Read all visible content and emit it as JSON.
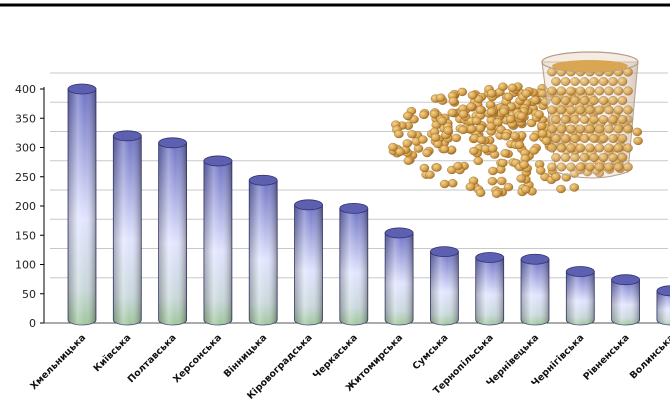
{
  "chart_data": {
    "type": "bar",
    "style": "3d-cylinder",
    "title": "",
    "xlabel": "",
    "ylabel": "",
    "ylim": [
      0,
      400
    ],
    "yticks": [
      0,
      50,
      100,
      150,
      200,
      250,
      300,
      350,
      400
    ],
    "grid": true,
    "legend": "none",
    "categories": [
      "Хмельницька",
      "Київська",
      "Полтавська",
      "Херсонська",
      "Вінницька",
      "Кіровоградська",
      "Черкаська",
      "Житомирська",
      "Сумська",
      "Тернопільська",
      "Чернівецька",
      "Чернігівська",
      "Рівненська",
      "Волинська"
    ],
    "values": [
      400,
      320,
      308,
      277,
      244,
      202,
      196,
      154,
      122,
      112,
      109,
      88,
      74,
      55
    ],
    "colors": {
      "bar_top": "#7478c8",
      "bar_mid": "#dfe2ff",
      "bar_bottom": "#a7cba0",
      "frame": "#000000",
      "grid": "#c8c8c8"
    }
  },
  "image": {
    "icon": "soybeans-in-cup-image"
  }
}
